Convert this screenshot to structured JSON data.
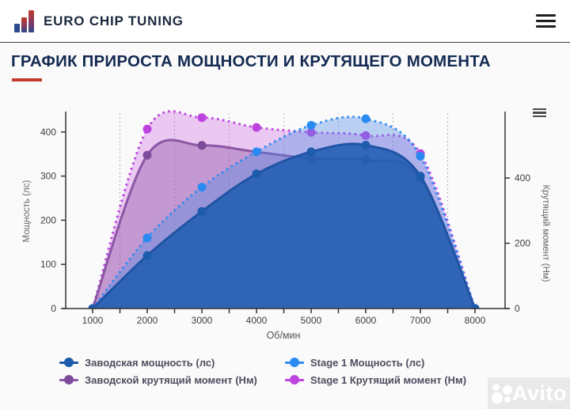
{
  "header": {
    "brand": "EURO CHIP TUNING"
  },
  "icons": {
    "logo": "bar-chart-logo-icon",
    "header_menu": "hamburger-menu-icon",
    "chart_menu": "chart-context-menu-icon"
  },
  "title": "ГРАФИК ПРИРОСТА МОЩНОСТИ И КРУТЯЩЕГО МОМЕНТА",
  "colors": {
    "accent_red": "#c23b2e",
    "title_navy": "#132a52",
    "factory_power_blue": "#2055a4",
    "stage1_power_blue": "#2e8bf0",
    "factory_torque_purple": "#8c56a5",
    "stage1_torque_magenta": "#bd43df"
  },
  "chart_data": {
    "type": "area",
    "x": [
      1000,
      2000,
      3000,
      4000,
      5000,
      6000,
      7000,
      8000
    ],
    "xlabel": "Об/мин",
    "x_tick_labels": [
      "1000",
      "2000",
      "3000",
      "4000",
      "5000",
      "6000",
      "7000",
      "8000"
    ],
    "x_gridlines": [
      1500,
      2500,
      3500,
      4500,
      5500,
      6500,
      7500
    ],
    "axes": {
      "left": {
        "label": "Мощность (лс)",
        "ticks": [
          0,
          100,
          200,
          300,
          400
        ],
        "range": [
          0,
          443
        ]
      },
      "right": {
        "label": "Крутящий момент (Нм)",
        "ticks": [
          0,
          200,
          400
        ],
        "range": [
          0,
          598
        ]
      }
    },
    "series": [
      {
        "name": "Заводская мощность (лс)",
        "axis": "left",
        "line_style": "solid",
        "color": "#2055a4",
        "marker_color": "#1d5cad",
        "fill": "rgba(28,92,176,0.85)",
        "values": [
          0,
          120,
          220,
          305,
          355,
          370,
          300,
          0
        ]
      },
      {
        "name": "Stage 1 Мощность (лс)",
        "axis": "left",
        "line_style": "dotted",
        "color": "#2e8bf0",
        "marker_color": "#2a8af2",
        "fill": "rgba(80,140,230,0.38)",
        "values": [
          0,
          160,
          275,
          355,
          415,
          430,
          345,
          0
        ]
      },
      {
        "name": "Заводской крутящий момент (Нм)",
        "axis": "right",
        "line_style": "solid",
        "color": "#8c56a5",
        "marker_color": "#7d4b99",
        "fill": "rgba(140,80,160,0.40)",
        "values": [
          0,
          470,
          500,
          480,
          460,
          455,
          400,
          0
        ]
      },
      {
        "name": "Stage 1 Крутящий момент (Нм)",
        "axis": "right",
        "line_style": "dotted",
        "color": "#bd43df",
        "marker_color": "#bd43df",
        "fill": "rgba(194,72,222,0.28)",
        "values": [
          0,
          550,
          585,
          555,
          540,
          530,
          475,
          0
        ]
      }
    ],
    "paint_order": [
      3,
      2,
      1,
      0
    ],
    "legend_position": "bottom",
    "grid": "vertical-dotted"
  },
  "watermark": {
    "text": "Avito"
  }
}
